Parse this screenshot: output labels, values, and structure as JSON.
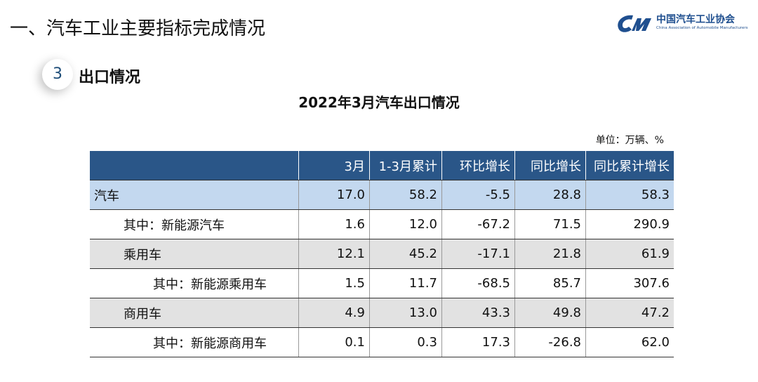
{
  "header": {
    "title": "一、汽车工业主要指标完成情况",
    "logo_cn": "中国汽车工业协会",
    "logo_en": "China Association of Automobile Manufacturers"
  },
  "section": {
    "number": 3,
    "title": "出口情况"
  },
  "table": {
    "title": "2022年3月汽车出口情况",
    "unit": "单位：万辆、%",
    "columns": [
      "3月",
      "1-3月累计",
      "环比增长",
      "同比增长",
      "同比累计增长"
    ],
    "rows": [
      [
        "汽车",
        "17.0",
        "58.2",
        "-5.5",
        "28.8",
        "58.3"
      ],
      [
        "其中：新能源汽车",
        "1.6",
        "12.0",
        "-67.2",
        "71.5",
        "290.9"
      ],
      [
        "乘用车",
        "12.1",
        "45.2",
        "-17.1",
        "21.8",
        "61.9"
      ],
      [
        "其中：新能源乘用车",
        "1.5",
        "11.7",
        "-68.5",
        "85.7",
        "307.6"
      ],
      [
        "商用车",
        "4.9",
        "13.0",
        "43.3",
        "49.8",
        "47.2"
      ],
      [
        "其中：新能源商用车",
        "0.1",
        "0.3",
        "17.3",
        "-26.8",
        "62.0"
      ]
    ]
  }
}
